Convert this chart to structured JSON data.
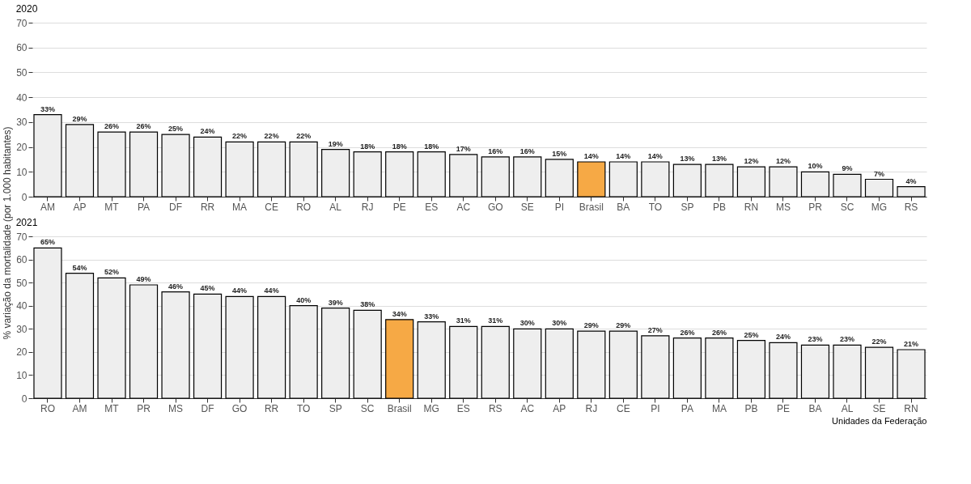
{
  "chart_data": [
    {
      "type": "bar",
      "title": "2020",
      "ylabel": "% variação da mortalidade (por 1.000 habitantes)",
      "categories": [
        "AM",
        "AP",
        "MT",
        "PA",
        "DF",
        "RR",
        "MA",
        "CE",
        "RO",
        "AL",
        "RJ",
        "PE",
        "ES",
        "AC",
        "GO",
        "SE",
        "PI",
        "Brasil",
        "BA",
        "TO",
        "SP",
        "PB",
        "RN",
        "MS",
        "PR",
        "SC",
        "MG",
        "RS"
      ],
      "values": [
        33,
        29,
        26,
        26,
        25,
        24,
        22,
        22,
        22,
        19,
        18,
        18,
        18,
        17,
        16,
        16,
        15,
        14,
        14,
        14,
        13,
        13,
        12,
        12,
        10,
        9,
        7,
        4
      ],
      "value_labels": [
        "33%",
        "29%",
        "26%",
        "26%",
        "25%",
        "24%",
        "22%",
        "22%",
        "22%",
        "19%",
        "18%",
        "18%",
        "18%",
        "17%",
        "16%",
        "16%",
        "15%",
        "14%",
        "14%",
        "14%",
        "13%",
        "13%",
        "12%",
        "12%",
        "10%",
        "9%",
        "7%",
        "4%"
      ],
      "colors": [
        "#eeeeee",
        "#eeeeee",
        "#eeeeee",
        "#eeeeee",
        "#eeeeee",
        "#eeeeee",
        "#eeeeee",
        "#eeeeee",
        "#eeeeee",
        "#eeeeee",
        "#eeeeee",
        "#eeeeee",
        "#eeeeee",
        "#eeeeee",
        "#eeeeee",
        "#eeeeee",
        "#eeeeee",
        "#f6a945",
        "#eeeeee",
        "#eeeeee",
        "#eeeeee",
        "#eeeeee",
        "#eeeeee",
        "#eeeeee",
        "#eeeeee",
        "#eeeeee",
        "#eeeeee",
        "#eeeeee"
      ],
      "ylim": [
        0,
        70
      ],
      "yticks": [
        0,
        10,
        20,
        30,
        40,
        50,
        60,
        70
      ],
      "grid": "y"
    },
    {
      "type": "bar",
      "title": "2021",
      "xlabel": "Unidades da Federação",
      "categories": [
        "RO",
        "AM",
        "MT",
        "PR",
        "MS",
        "DF",
        "GO",
        "RR",
        "TO",
        "SP",
        "SC",
        "Brasil",
        "MG",
        "ES",
        "RS",
        "AC",
        "AP",
        "RJ",
        "CE",
        "PI",
        "PA",
        "MA",
        "PB",
        "PE",
        "BA",
        "AL",
        "SE",
        "RN"
      ],
      "values": [
        65,
        54,
        52,
        49,
        46,
        45,
        44,
        44,
        40,
        39,
        38,
        34,
        33,
        31,
        31,
        30,
        30,
        29,
        29,
        27,
        26,
        26,
        25,
        24,
        23,
        23,
        22,
        21
      ],
      "value_labels": [
        "65%",
        "54%",
        "52%",
        "49%",
        "46%",
        "45%",
        "44%",
        "44%",
        "40%",
        "39%",
        "38%",
        "34%",
        "33%",
        "31%",
        "31%",
        "30%",
        "30%",
        "29%",
        "29%",
        "27%",
        "26%",
        "26%",
        "25%",
        "24%",
        "23%",
        "23%",
        "22%",
        "21%"
      ],
      "colors": [
        "#eeeeee",
        "#eeeeee",
        "#eeeeee",
        "#eeeeee",
        "#eeeeee",
        "#eeeeee",
        "#eeeeee",
        "#eeeeee",
        "#eeeeee",
        "#eeeeee",
        "#eeeeee",
        "#f6a945",
        "#eeeeee",
        "#eeeeee",
        "#eeeeee",
        "#eeeeee",
        "#eeeeee",
        "#eeeeee",
        "#eeeeee",
        "#eeeeee",
        "#eeeeee",
        "#eeeeee",
        "#eeeeee",
        "#eeeeee",
        "#eeeeee",
        "#eeeeee",
        "#eeeeee",
        "#eeeeee"
      ],
      "ylim": [
        0,
        70
      ],
      "yticks": [
        0,
        10,
        20,
        30,
        40,
        50,
        60,
        70
      ],
      "grid": "y"
    }
  ]
}
